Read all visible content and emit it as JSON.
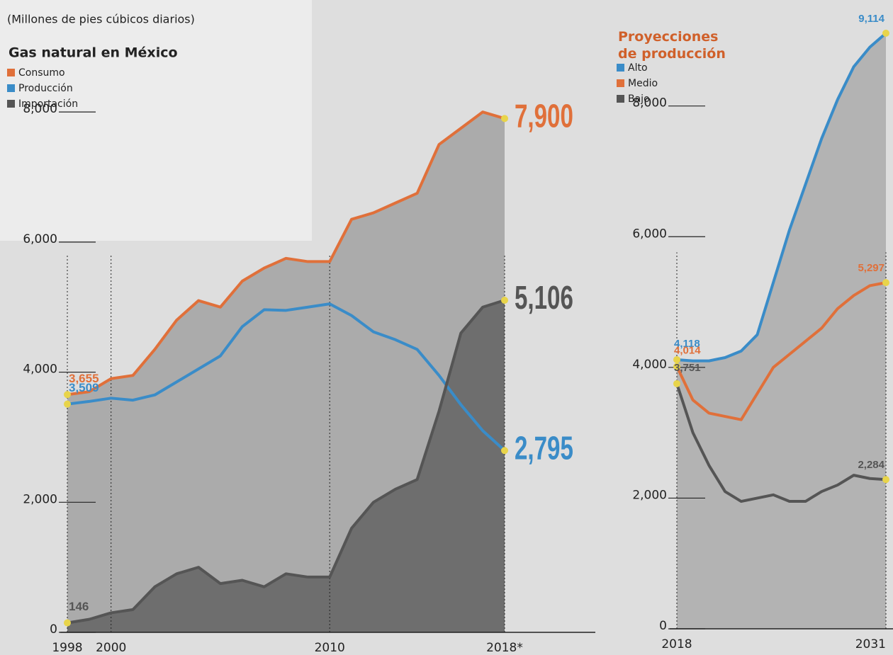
{
  "chart_data": [
    {
      "type": "line",
      "subtitle": "(Millones de pies cúbicos diarios)",
      "legend_title": "Gas natural en México",
      "legend": "top-left",
      "x": [
        1998,
        1999,
        2000,
        2001,
        2002,
        2003,
        2004,
        2005,
        2006,
        2007,
        2008,
        2009,
        2010,
        2011,
        2012,
        2013,
        2014,
        2015,
        2016,
        2017,
        2018
      ],
      "xlim": [
        1998,
        2018
      ],
      "xticks": [
        1998,
        2000,
        2010,
        {
          "value": 2018,
          "label": "2018*"
        }
      ],
      "ylim": [
        0,
        9700
      ],
      "yticks": [
        0,
        {
          "value": 2000,
          "label": "2,000"
        },
        {
          "value": 4000,
          "label": "4,000"
        },
        {
          "value": 6000,
          "label": "6,000"
        },
        {
          "value": 8000,
          "label": "8,000"
        }
      ],
      "series": [
        {
          "name": "Consumo",
          "color": "#e0703a",
          "fill": "#ababab",
          "values": [
            3655,
            3700,
            3900,
            3950,
            4350,
            4800,
            5100,
            5000,
            5400,
            5600,
            5750,
            5700,
            5700,
            6350,
            6450,
            6600,
            6750,
            7500,
            7750,
            8000,
            7900
          ],
          "value_labels": [
            "3,655",
            null,
            null,
            null,
            null,
            null,
            null,
            null,
            null,
            null,
            null,
            null,
            null,
            null,
            null,
            null,
            null,
            null,
            null,
            null,
            "7,900"
          ]
        },
        {
          "name": "Producción",
          "color": "#3a8cc8",
          "values": [
            3509,
            3550,
            3600,
            3570,
            3650,
            3850,
            4050,
            4250,
            4700,
            4960,
            4950,
            5000,
            5050,
            4870,
            4620,
            4500,
            4350,
            3950,
            3500,
            3100,
            2795
          ],
          "value_labels": [
            "3,509",
            null,
            null,
            null,
            null,
            null,
            null,
            null,
            null,
            null,
            null,
            null,
            null,
            null,
            null,
            null,
            null,
            null,
            null,
            null,
            "2,795"
          ]
        },
        {
          "name": "Importación",
          "color": "#555555",
          "fill": "#6e6e6e",
          "values": [
            146,
            200,
            300,
            350,
            700,
            900,
            1000,
            750,
            800,
            700,
            900,
            850,
            850,
            1600,
            2000,
            2200,
            2350,
            3400,
            4600,
            5000,
            5106
          ],
          "value_labels": [
            "146",
            null,
            null,
            null,
            null,
            null,
            null,
            null,
            null,
            null,
            null,
            null,
            null,
            null,
            null,
            null,
            null,
            null,
            null,
            null,
            "5,106"
          ]
        }
      ]
    },
    {
      "type": "line",
      "legend_title": "Proyecciones de producción",
      "legend": "top-left",
      "x": [
        2018,
        2019,
        2020,
        2021,
        2022,
        2023,
        2024,
        2025,
        2026,
        2027,
        2028,
        2029,
        2030,
        2031
      ],
      "xlim": [
        2018,
        2031
      ],
      "xticks": [
        2018,
        2031
      ],
      "ylim": [
        0,
        9600
      ],
      "yticks": [
        0,
        {
          "value": 2000,
          "label": "2,000"
        },
        {
          "value": 4000,
          "label": "4,000"
        },
        {
          "value": 6000,
          "label": "6,000"
        },
        {
          "value": 8000,
          "label": "8,000"
        }
      ],
      "series": [
        {
          "name": "Alto",
          "color": "#3a8cc8",
          "fill": "#b3b3b3",
          "values": [
            4118,
            4100,
            4100,
            4150,
            4250,
            4500,
            5300,
            6100,
            6800,
            7500,
            8100,
            8600,
            8900,
            9114
          ],
          "value_labels": [
            "4,118",
            null,
            null,
            null,
            null,
            null,
            null,
            null,
            null,
            null,
            null,
            null,
            null,
            "9,114"
          ]
        },
        {
          "name": "Medio",
          "color": "#e0703a",
          "values": [
            4014,
            3500,
            3300,
            3250,
            3200,
            3600,
            4000,
            4200,
            4400,
            4600,
            4900,
            5100,
            5250,
            5297
          ],
          "value_labels": [
            "4,014",
            null,
            null,
            null,
            null,
            null,
            null,
            null,
            null,
            null,
            null,
            null,
            null,
            "5,297"
          ]
        },
        {
          "name": "Bajo",
          "color": "#555555",
          "values": [
            3751,
            3000,
            2500,
            2100,
            1950,
            2000,
            2050,
            1950,
            1950,
            2100,
            2200,
            2350,
            2300,
            2284
          ],
          "value_labels": [
            "3,751",
            null,
            null,
            null,
            null,
            null,
            null,
            null,
            null,
            null,
            null,
            null,
            null,
            "2,284"
          ]
        }
      ]
    }
  ]
}
